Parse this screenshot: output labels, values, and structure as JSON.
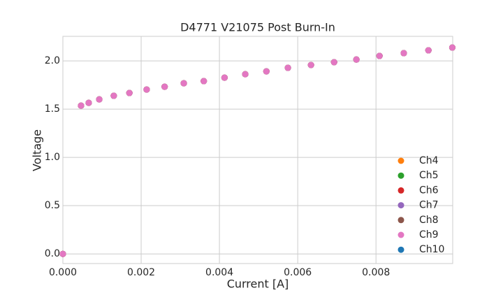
{
  "chart_data": {
    "type": "scatter",
    "title": "D4771 V21075 Post Burn-In",
    "x_label": "Current [A]",
    "y_label": "Voltage",
    "x": [
      0,
      0.000464,
      0.00066,
      0.00093,
      0.0013,
      0.0017,
      0.00214,
      0.0026,
      0.00309,
      0.0036,
      0.00413,
      0.00466,
      0.0052,
      0.00575,
      0.00634,
      0.00693,
      0.0075,
      0.00809,
      0.00871,
      0.00934,
      0.00995
    ],
    "series": [
      {
        "name": "Ch4",
        "color": "#ff7f0e",
        "values": [
          0,
          1.536,
          1.565,
          1.601,
          1.638,
          1.667,
          1.703,
          1.732,
          1.768,
          1.79,
          1.826,
          1.862,
          1.891,
          1.928,
          1.957,
          1.986,
          2.014,
          2.051,
          2.08,
          2.109,
          2.138
        ]
      },
      {
        "name": "Ch5",
        "color": "#2ca02c",
        "values": [
          0,
          1.536,
          1.565,
          1.601,
          1.638,
          1.667,
          1.703,
          1.732,
          1.768,
          1.79,
          1.826,
          1.862,
          1.891,
          1.928,
          1.957,
          1.986,
          2.014,
          2.051,
          2.08,
          2.109,
          2.138
        ]
      },
      {
        "name": "Ch6",
        "color": "#d62728",
        "values": [
          0,
          1.536,
          1.565,
          1.601,
          1.638,
          1.667,
          1.703,
          1.732,
          1.768,
          1.79,
          1.826,
          1.862,
          1.891,
          1.928,
          1.957,
          1.986,
          2.014,
          2.051,
          2.08,
          2.109,
          2.138
        ]
      },
      {
        "name": "Ch7",
        "color": "#9467bd",
        "values": [
          0,
          1.536,
          1.565,
          1.601,
          1.638,
          1.667,
          1.703,
          1.732,
          1.768,
          1.79,
          1.826,
          1.862,
          1.891,
          1.928,
          1.957,
          1.986,
          2.014,
          2.051,
          2.08,
          2.109,
          2.138
        ]
      },
      {
        "name": "Ch8",
        "color": "#8c564b",
        "values": [
          0,
          1.536,
          1.565,
          1.601,
          1.638,
          1.667,
          1.703,
          1.732,
          1.768,
          1.79,
          1.826,
          1.862,
          1.891,
          1.928,
          1.957,
          1.986,
          2.014,
          2.051,
          2.08,
          2.109,
          2.138
        ]
      },
      {
        "name": "Ch9",
        "color": "#e377c2",
        "values": [
          0,
          1.536,
          1.565,
          1.601,
          1.638,
          1.667,
          1.703,
          1.732,
          1.768,
          1.79,
          1.826,
          1.862,
          1.891,
          1.928,
          1.957,
          1.986,
          2.014,
          2.051,
          2.08,
          2.109,
          2.138
        ]
      },
      {
        "name": "Ch10",
        "color": "#1f77b4",
        "values": [
          0,
          1.536,
          1.565,
          1.601,
          1.638,
          1.667,
          1.703,
          1.732,
          1.768,
          1.79,
          1.826,
          1.862,
          1.891,
          1.928,
          1.957,
          1.986,
          2.014,
          2.051,
          2.08,
          2.109,
          2.138
        ]
      }
    ],
    "xlim": [
      0,
      0.00996
    ],
    "ylim": [
      -0.1,
      2.254
    ],
    "xticks": [
      {
        "value": 0,
        "label": "0.000"
      },
      {
        "value": 0.002,
        "label": "0.002"
      },
      {
        "value": 0.004,
        "label": "0.004"
      },
      {
        "value": 0.006,
        "label": "0.006"
      },
      {
        "value": 0.008,
        "label": "0.008"
      }
    ],
    "yticks": [
      {
        "value": 0,
        "label": "0.0"
      },
      {
        "value": 0.5,
        "label": "0.5"
      },
      {
        "value": 1,
        "label": "1.0"
      },
      {
        "value": 1.5,
        "label": "1.5"
      },
      {
        "value": 2,
        "label": "2.0"
      }
    ],
    "grid": true,
    "legend": "lower right"
  }
}
